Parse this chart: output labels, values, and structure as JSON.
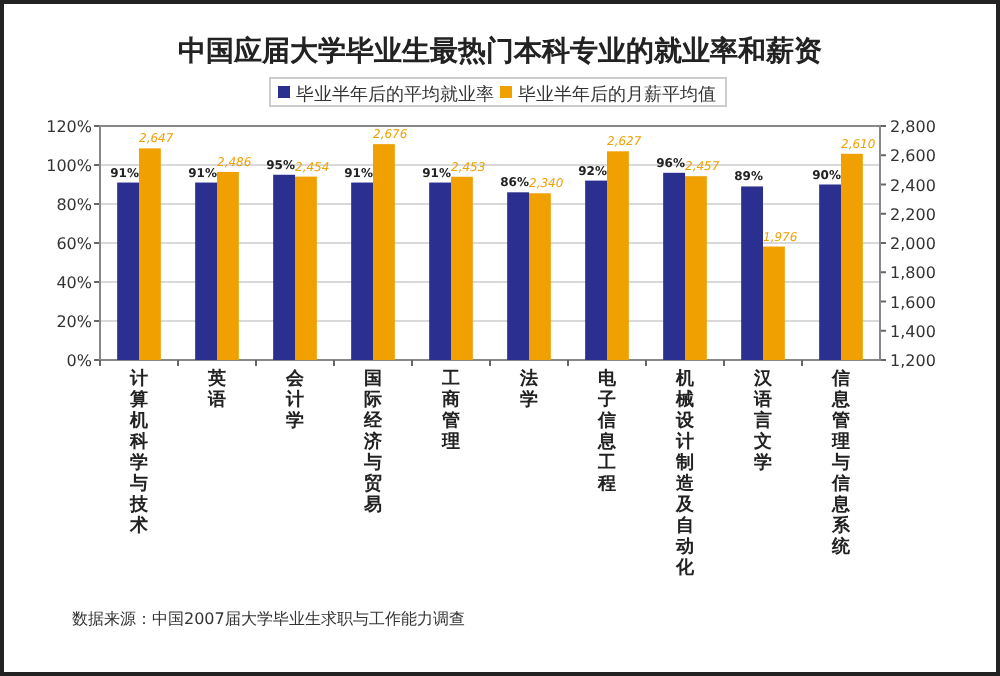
{
  "chart_data": {
    "type": "bar",
    "title": "中国应届大学毕业生最热门本科专业的就业率和薪资",
    "categories": [
      "计算机科学与技术",
      "英语",
      "会计学",
      "国际经济与贸易",
      "工商管理",
      "法学",
      "电子信息工程",
      "机械设计制造及自动化",
      "汉语言文学",
      "信息管理与信息系统"
    ],
    "series": [
      {
        "name": "毕业半年后的平均就业率",
        "color": "#2b2f8f",
        "values": [
          91,
          91,
          95,
          91,
          91,
          86,
          92,
          96,
          89,
          90
        ],
        "value_labels": [
          "91%",
          "91%",
          "95%",
          "91%",
          "91%",
          "86%",
          "92%",
          "96%",
          "89%",
          "90%"
        ]
      },
      {
        "name": "毕业半年后的月薪平均值",
        "color": "#f0a000",
        "axis": "y2",
        "values": [
          2647,
          2486,
          2454,
          2676,
          2453,
          2340,
          2627,
          2457,
          1976,
          2610
        ],
        "value_labels": [
          "2,647",
          "2,486",
          "2,454",
          "2,676",
          "2,453",
          "2,340",
          "2,627",
          "2,457",
          "1,976",
          "2,610"
        ]
      }
    ],
    "ylim": [
      0,
      120
    ],
    "yticks": [
      {
        "value": 0,
        "label": "0%"
      },
      {
        "value": 20,
        "label": "20%"
      },
      {
        "value": 40,
        "label": "40%"
      },
      {
        "value": 60,
        "label": "60%"
      },
      {
        "value": 80,
        "label": "80%"
      },
      {
        "value": 100,
        "label": "100%"
      },
      {
        "value": 120,
        "label": "120%"
      }
    ],
    "y2lim": [
      1200,
      2800
    ],
    "y2ticks": [
      {
        "value": 1200,
        "label": "1,200"
      },
      {
        "value": 1400,
        "label": "1,400"
      },
      {
        "value": 1600,
        "label": "1,600"
      },
      {
        "value": 1800,
        "label": "1,800"
      },
      {
        "value": 2000,
        "label": "2,000"
      },
      {
        "value": 2200,
        "label": "2,200"
      },
      {
        "value": 2400,
        "label": "2,400"
      },
      {
        "value": 2600,
        "label": "2,600"
      },
      {
        "value": 2800,
        "label": "2,800"
      }
    ],
    "grid": "y",
    "legend": "top",
    "annotations": [
      "数据来源：中国2007届大学毕业生求职与工作能力调查"
    ]
  }
}
